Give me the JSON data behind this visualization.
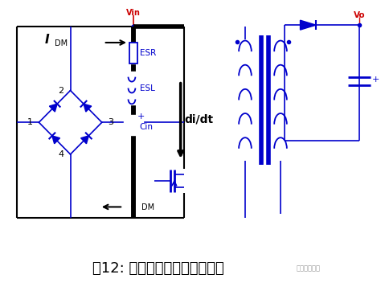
{
  "title": "图12: 开关电流形成的差模电流",
  "title_fontsize": 13,
  "bg_color": "#ffffff",
  "BK": "#000000",
  "BL": "#0000cc",
  "RD": "#cc0000",
  "text_Vin": "Vin",
  "text_Vo": "Vo",
  "text_ESR": "ESR",
  "text_ESL": "ESL",
  "text_didt": "di/dt",
  "text_Cin": "Cin"
}
